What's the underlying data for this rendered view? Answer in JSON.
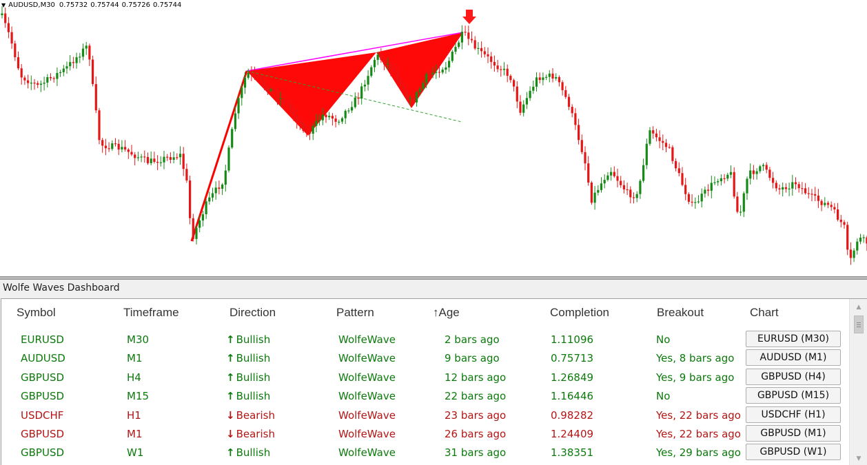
{
  "chart": {
    "symbol": "AUDUSD,M30",
    "ohlc": [
      "0.75732",
      "0.75744",
      "0.75726",
      "0.75744"
    ],
    "colors": {
      "bull": "#168a16",
      "bear": "#e41616",
      "pattern": "#ff0000",
      "signal": "#ff1a1a",
      "target_line": "#2ea32e"
    }
  },
  "dashboard": {
    "title": "Wolfe Waves Dashboard",
    "headers": {
      "symbol": "Symbol",
      "timeframe": "Timeframe",
      "direction": "Direction",
      "pattern": "Pattern",
      "age": "Age",
      "completion": "Completion",
      "breakout": "Breakout",
      "chart": "Chart"
    },
    "sort_icon": "sort-ascending-arrow-icon",
    "rows": [
      {
        "symbol": "EURUSD",
        "timeframe": "M30",
        "direction": "Bullish",
        "pattern": "WolfeWave",
        "age": "2 bars ago",
        "completion": "1.11096",
        "breakout": "No",
        "chart_button": "EURUSD (M30)",
        "color": "green",
        "breakout_color": "green"
      },
      {
        "symbol": "AUDUSD",
        "timeframe": "M1",
        "direction": "Bullish",
        "pattern": "WolfeWave",
        "age": "9 bars ago",
        "completion": "0.75713",
        "breakout": "Yes, 8 bars ago",
        "chart_button": "AUDUSD (M1)",
        "color": "green",
        "breakout_color": "green"
      },
      {
        "symbol": "GBPUSD",
        "timeframe": "H4",
        "direction": "Bullish",
        "pattern": "WolfeWave",
        "age": "12 bars ago",
        "completion": "1.26849",
        "breakout": "Yes, 9 bars ago",
        "chart_button": "GBPUSD (H4)",
        "color": "green",
        "breakout_color": "green"
      },
      {
        "symbol": "GBPUSD",
        "timeframe": "M15",
        "direction": "Bullish",
        "pattern": "WolfeWave",
        "age": "22 bars ago",
        "completion": "1.16446",
        "breakout": "No",
        "chart_button": "GBPUSD (M15)",
        "color": "green",
        "breakout_color": "green"
      },
      {
        "symbol": "USDCHF",
        "timeframe": "H1",
        "direction": "Bearish",
        "pattern": "WolfeWave",
        "age": "23 bars ago",
        "completion": "0.98282",
        "breakout": "Yes, 22 bars ago",
        "chart_button": "USDCHF (H1)",
        "color": "red",
        "breakout_color": "red"
      },
      {
        "symbol": "GBPUSD",
        "timeframe": "M1",
        "direction": "Bearish",
        "pattern": "WolfeWave",
        "age": "26 bars ago",
        "completion": "1.24409",
        "breakout": "Yes, 22 bars ago",
        "chart_button": "GBPUSD (M1)",
        "color": "red",
        "breakout_color": "red"
      },
      {
        "symbol": "GBPUSD",
        "timeframe": "W1",
        "direction": "Bullish",
        "pattern": "WolfeWave",
        "age": "31 bars ago",
        "completion": "1.38351",
        "breakout": "Yes, 29 bars ago",
        "chart_button": "GBPUSD (W1)",
        "color": "green",
        "breakout_color": "green"
      }
    ]
  }
}
